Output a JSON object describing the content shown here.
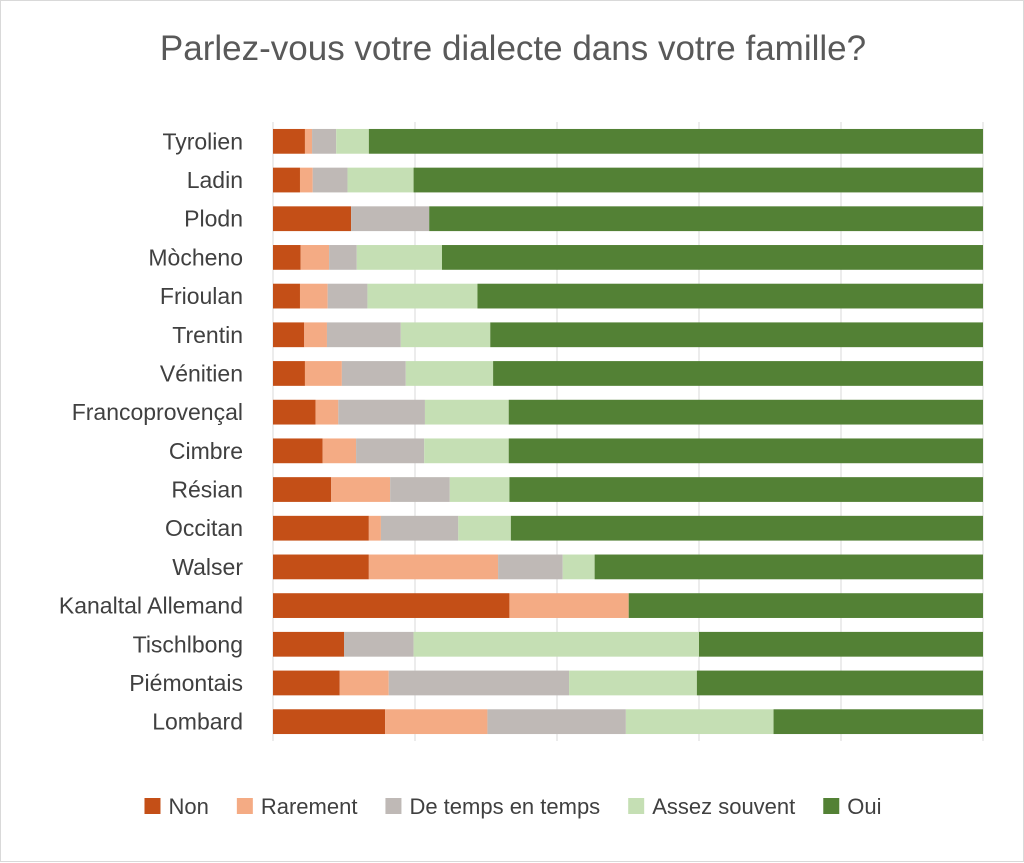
{
  "chart_data": {
    "type": "bar",
    "orientation": "horizontal",
    "stacked": "percent",
    "title": "Parlez-vous votre dialecte dans votre famille?",
    "xlabel": "",
    "ylabel": "",
    "xlim": [
      0,
      100
    ],
    "grid": true,
    "legend_position": "bottom",
    "categories": [
      "Tyrolien",
      "Ladin",
      "Plodn",
      "Mòcheno",
      "Frioulan",
      "Trentin",
      "Vénitien",
      "Francoprovençal",
      "Cimbre",
      "Résian",
      "Occitan",
      "Walser",
      "Kanaltal Allemand",
      "Tischlbong",
      "Piémontais",
      "Lombard"
    ],
    "series": [
      {
        "name": "Non",
        "color": "#c44f17",
        "values": [
          4.5,
          3.8,
          11.0,
          3.9,
          3.8,
          4.4,
          4.5,
          6.0,
          7.0,
          8.2,
          13.5,
          13.5,
          33.3,
          10.0,
          9.4,
          15.8
        ]
      },
      {
        "name": "Rarement",
        "color": "#f4ab84",
        "values": [
          1.0,
          1.8,
          0,
          4.0,
          3.9,
          3.2,
          5.2,
          3.2,
          4.7,
          8.3,
          1.7,
          18.2,
          16.8,
          0,
          6.9,
          14.4
        ]
      },
      {
        "name": "De temps en temps",
        "color": "#bfb9b6",
        "values": [
          3.4,
          4.9,
          11.0,
          3.9,
          5.6,
          10.4,
          9.0,
          12.2,
          9.6,
          8.4,
          10.9,
          9.1,
          0,
          9.8,
          25.4,
          19.5
        ]
      },
      {
        "name": "Assez souvent",
        "color": "#c5dfb4",
        "values": [
          4.6,
          9.3,
          0,
          12.0,
          15.5,
          12.6,
          12.3,
          11.8,
          11.9,
          8.4,
          7.4,
          4.5,
          0,
          40.2,
          18.0,
          20.8
        ]
      },
      {
        "name": "Oui",
        "color": "#538135",
        "values": [
          86.5,
          80.2,
          78.0,
          76.2,
          71.2,
          69.4,
          69.0,
          66.8,
          66.8,
          66.7,
          66.5,
          54.7,
          49.9,
          40.0,
          40.3,
          29.5
        ]
      }
    ]
  }
}
